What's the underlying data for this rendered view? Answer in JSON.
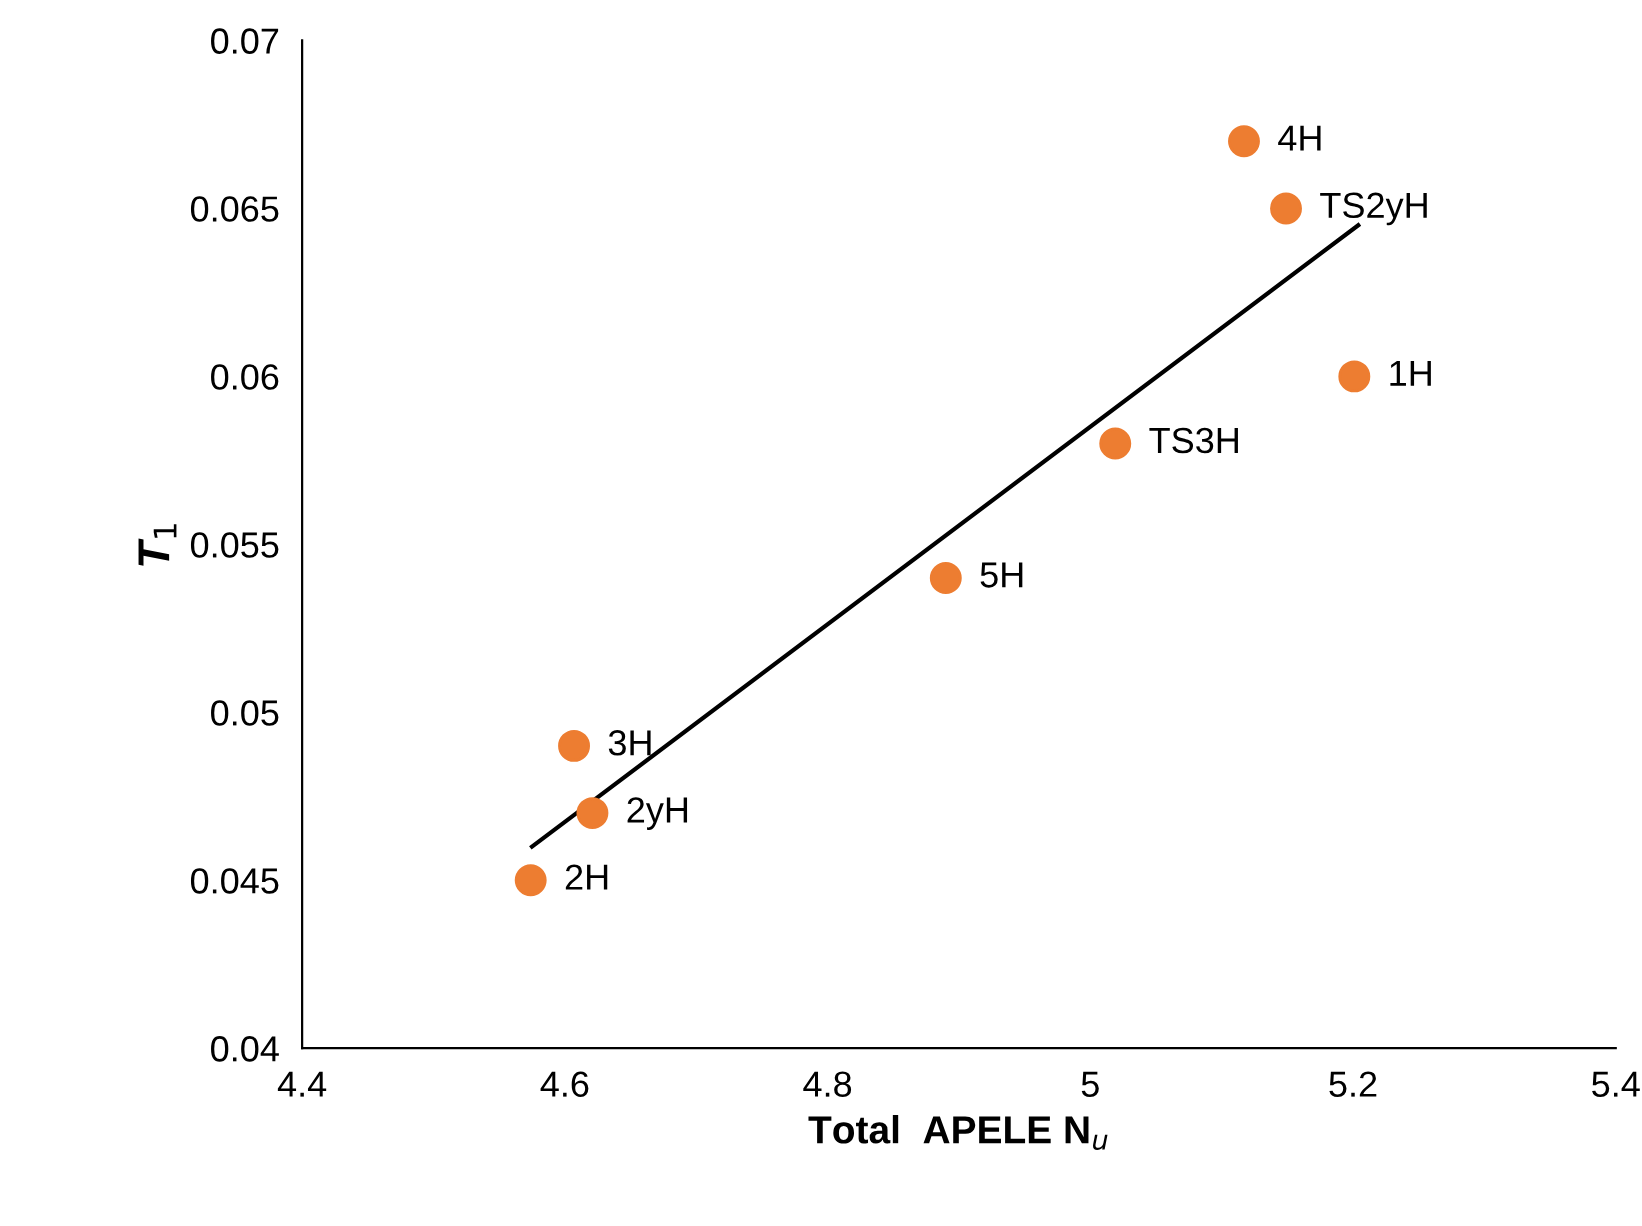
{
  "chart_data": {
    "type": "scatter",
    "xlabel": "Total  APELE N$_{u}$",
    "ylabel": "T$_{1}$",
    "xlim": [
      4.4,
      5.4
    ],
    "xticks": [
      4.4,
      4.6,
      4.8,
      5,
      5.2,
      5.4
    ],
    "ylim": [
      0.04,
      0.07
    ],
    "yticks": [
      0.04,
      0.045,
      0.05,
      0.055,
      0.06,
      0.065,
      0.07
    ],
    "grid": false,
    "legend": false,
    "series": [
      {
        "marker": "circle",
        "color": "#ed7d31",
        "x": [
          5.117,
          5.149,
          5.201,
          5.019,
          4.89,
          4.607,
          4.621,
          4.574
        ],
        "values": [
          0.067,
          0.065,
          0.06,
          0.058,
          0.054,
          0.049,
          0.047,
          0.045
        ]
      },
      {
        "type": "line",
        "marker": "none",
        "color": "#000000",
        "x": [
          4.575,
          5.204
        ],
        "values": [
          0.046,
          0.0645
        ]
      }
    ],
    "annotations": [
      {
        "text": "4H",
        "x": 5.117,
        "y": 0.067
      },
      {
        "text": "TS2yH",
        "x": 5.149,
        "y": 0.065
      },
      {
        "text": "1H",
        "x": 5.201,
        "y": 0.06
      },
      {
        "text": "TS3H",
        "x": 5.019,
        "y": 0.058
      },
      {
        "text": "5H",
        "x": 4.89,
        "y": 0.054
      },
      {
        "text": "3H",
        "x": 4.607,
        "y": 0.049
      },
      {
        "text": "2yH",
        "x": 4.621,
        "y": 0.047
      },
      {
        "text": "2H",
        "x": 4.574,
        "y": 0.045
      }
    ]
  }
}
